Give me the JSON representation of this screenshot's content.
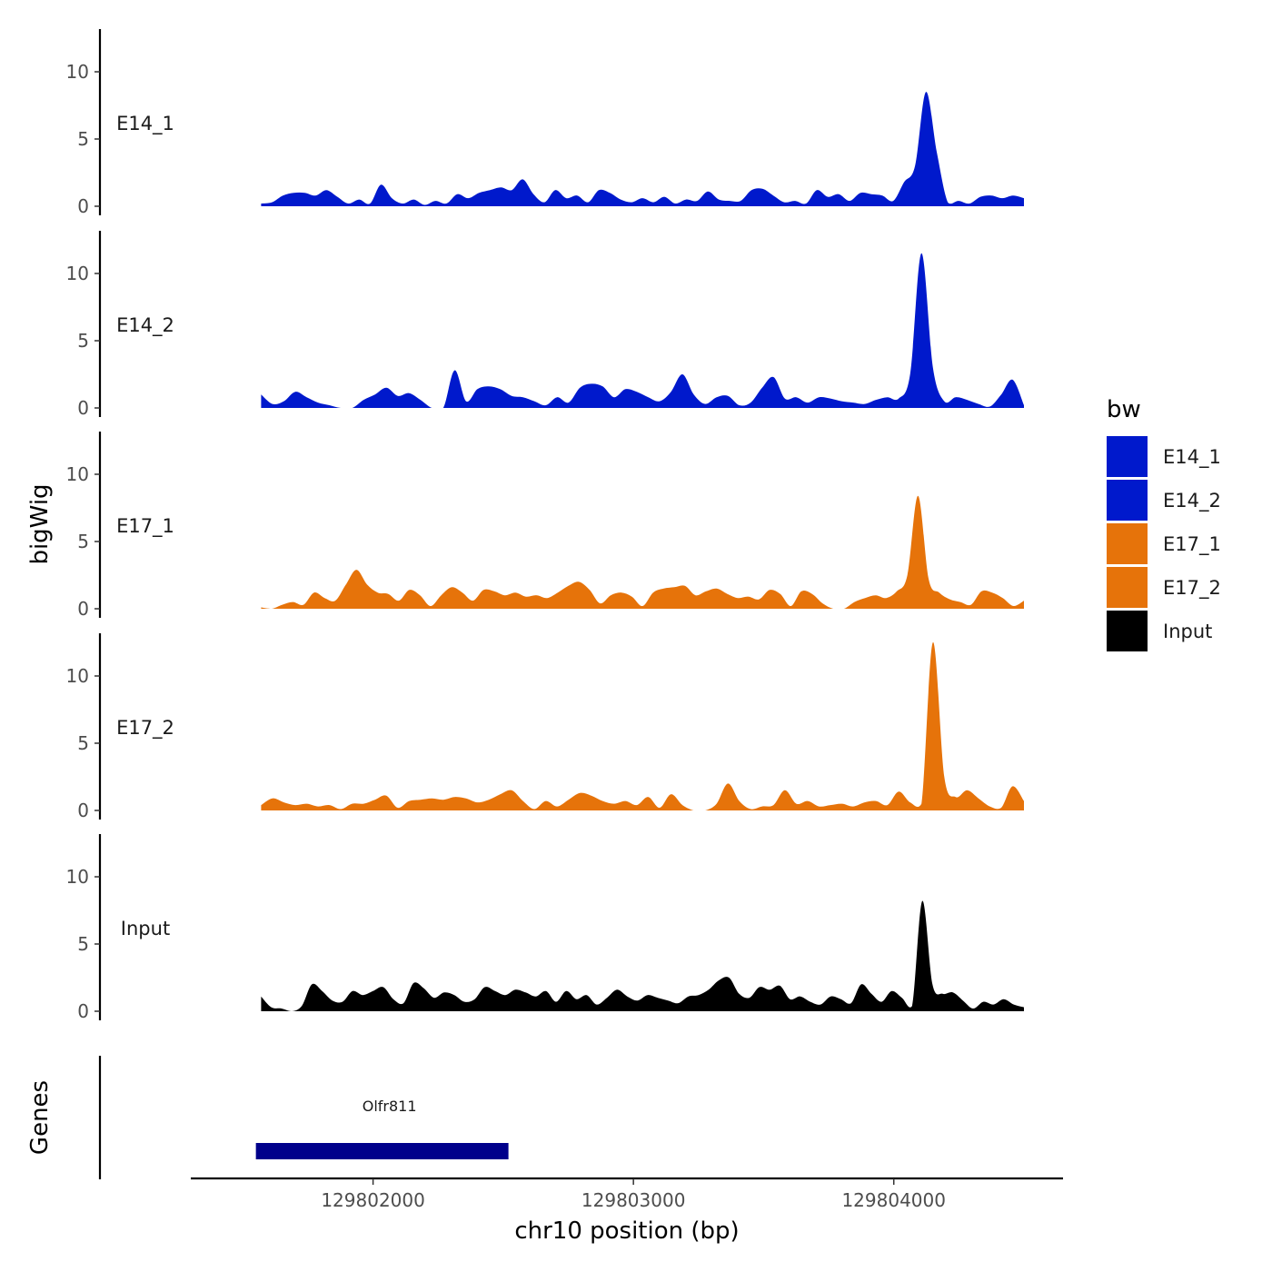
{
  "chart_data": {
    "type": "area",
    "ylabel": "bigWig",
    "xlabel": "chr10 position (bp)",
    "genes_label": "Genes",
    "x_range": [
      129801300,
      129804650
    ],
    "x_ticks": [
      129802000,
      129803000,
      129804000
    ],
    "x_tick_labels": [
      "129802000",
      "129803000",
      "129804000"
    ],
    "ylim": [
      0,
      13
    ],
    "y_ticks": [
      0,
      5,
      10
    ],
    "y_tick_labels": [
      "0",
      "5",
      "10"
    ],
    "data_x_range": [
      129801570,
      129804500
    ],
    "legend": {
      "title": "bw",
      "entries": [
        {
          "label": "E14_1",
          "color": "#0019CC"
        },
        {
          "label": "E14_2",
          "color": "#0019CC"
        },
        {
          "label": "E17_1",
          "color": "#E6730A"
        },
        {
          "label": "E17_2",
          "color": "#E6730A"
        },
        {
          "label": "Input",
          "color": "#000000"
        }
      ]
    },
    "series": [
      {
        "name": "E14_1",
        "color": "#0019CC",
        "values": [
          0.2,
          0.3,
          0.8,
          1.0,
          1.0,
          0.8,
          1.2,
          0.7,
          0.2,
          0.5,
          0.2,
          1.6,
          0.6,
          0.2,
          0.5,
          0.1,
          0.4,
          0.2,
          0.9,
          0.6,
          1.0,
          1.2,
          1.4,
          1.2,
          2.0,
          0.9,
          0.3,
          1.2,
          0.6,
          0.8,
          0.3,
          1.2,
          1.0,
          0.5,
          0.3,
          0.6,
          0.3,
          0.7,
          0.2,
          0.5,
          0.4,
          1.1,
          0.5,
          0.4,
          0.4,
          1.2,
          1.3,
          0.8,
          0.3,
          0.4,
          0.2,
          1.2,
          0.7,
          0.9,
          0.4,
          1.0,
          0.9,
          0.8,
          0.4,
          1.8,
          3.0,
          8.5,
          4.0,
          0.3,
          0.4,
          0.2,
          0.7,
          0.8,
          0.6,
          0.8,
          0.6
        ]
      },
      {
        "name": "E14_2",
        "color": "#0019CC",
        "values": [
          1.0,
          0.3,
          0.5,
          1.2,
          0.8,
          0.4,
          0.2,
          0.0,
          0.0,
          0.6,
          1.0,
          1.5,
          0.9,
          1.1,
          0.6,
          0.0,
          0.0,
          2.8,
          0.5,
          1.4,
          1.6,
          1.4,
          0.9,
          0.8,
          0.5,
          0.2,
          0.8,
          0.4,
          1.5,
          1.8,
          1.6,
          0.8,
          1.4,
          1.2,
          0.8,
          0.5,
          1.2,
          2.5,
          1.0,
          0.3,
          0.8,
          0.9,
          0.2,
          0.4,
          1.5,
          2.3,
          0.7,
          0.8,
          0.4,
          0.8,
          0.7,
          0.5,
          0.4,
          0.3,
          0.6,
          0.8,
          0.7,
          2.5,
          11.5,
          3.0,
          0.5,
          0.8,
          0.6,
          0.3,
          0.1,
          1.0,
          2.1,
          0.2
        ]
      },
      {
        "name": "E17_1",
        "color": "#E6730A",
        "values": [
          0.1,
          0.0,
          0.3,
          0.5,
          0.3,
          1.2,
          0.8,
          0.6,
          1.8,
          2.9,
          1.8,
          1.2,
          1.1,
          0.6,
          1.4,
          1.0,
          0.2,
          1.0,
          1.6,
          1.2,
          0.6,
          1.4,
          1.3,
          1.0,
          1.2,
          0.9,
          1.0,
          0.8,
          1.2,
          1.7,
          2.0,
          1.4,
          0.4,
          1.0,
          1.2,
          0.9,
          0.2,
          1.2,
          1.5,
          1.6,
          1.7,
          1.0,
          1.3,
          1.5,
          1.1,
          0.8,
          0.9,
          0.7,
          1.4,
          1.1,
          0.2,
          1.3,
          1.1,
          0.4,
          0.0,
          0.0,
          0.5,
          0.8,
          1.0,
          0.8,
          1.3,
          2.5,
          8.4,
          2.2,
          1.2,
          0.7,
          0.5,
          0.3,
          1.3,
          1.2,
          0.8,
          0.2,
          0.6
        ]
      },
      {
        "name": "E17_2",
        "color": "#E6730A",
        "values": [
          0.4,
          0.9,
          0.6,
          0.4,
          0.5,
          0.3,
          0.4,
          0.1,
          0.5,
          0.5,
          0.8,
          1.1,
          0.2,
          0.7,
          0.8,
          0.9,
          0.8,
          1.0,
          0.9,
          0.6,
          0.8,
          1.2,
          1.5,
          0.7,
          0.1,
          0.7,
          0.3,
          0.8,
          1.3,
          1.1,
          0.7,
          0.5,
          0.7,
          0.4,
          1.0,
          0.2,
          1.2,
          0.4,
          0.0,
          0.0,
          0.5,
          2.0,
          0.7,
          0.1,
          0.3,
          0.4,
          1.5,
          0.5,
          0.7,
          0.3,
          0.4,
          0.5,
          0.3,
          0.6,
          0.7,
          0.4,
          1.4,
          0.6,
          0.5,
          12.5,
          2.5,
          1.0,
          1.5,
          0.9,
          0.3,
          0.2,
          1.8,
          0.7
        ]
      },
      {
        "name": "Input",
        "color": "#000000",
        "values": [
          1.1,
          0.3,
          0.2,
          0.0,
          0.4,
          2.0,
          1.5,
          0.8,
          0.7,
          1.5,
          1.2,
          1.5,
          1.8,
          0.9,
          0.6,
          2.1,
          1.7,
          1.0,
          1.4,
          1.2,
          0.7,
          0.9,
          1.8,
          1.5,
          1.2,
          1.6,
          1.4,
          1.1,
          1.5,
          0.7,
          1.5,
          0.9,
          1.2,
          0.5,
          1.0,
          1.6,
          1.1,
          0.8,
          1.2,
          1.0,
          0.8,
          0.6,
          1.1,
          1.2,
          1.6,
          2.3,
          2.5,
          1.3,
          1.0,
          1.8,
          1.6,
          1.9,
          0.9,
          1.1,
          0.7,
          0.5,
          1.1,
          0.9,
          0.6,
          2.0,
          1.3,
          0.7,
          1.5,
          1.0,
          0.4,
          8.2,
          2.0,
          1.3,
          1.4,
          0.8,
          0.2,
          0.7,
          0.5,
          0.9,
          0.5,
          0.3
        ]
      }
    ],
    "gene": {
      "name": "Olfr811",
      "start": 129801550,
      "end": 129802520,
      "color": "#00008B"
    }
  }
}
